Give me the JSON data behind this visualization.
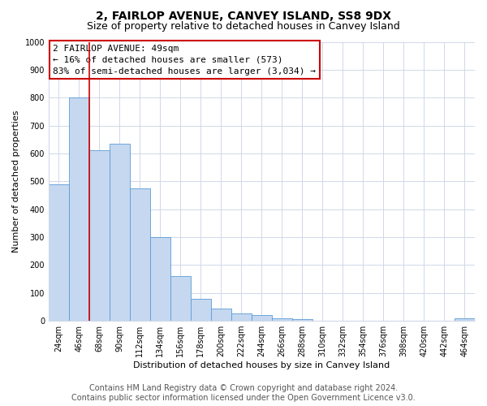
{
  "title": "2, FAIRLOP AVENUE, CANVEY ISLAND, SS8 9DX",
  "subtitle": "Size of property relative to detached houses in Canvey Island",
  "xlabel": "Distribution of detached houses by size in Canvey Island",
  "ylabel": "Number of detached properties",
  "footer_line1": "Contains HM Land Registry data © Crown copyright and database right 2024.",
  "footer_line2": "Contains public sector information licensed under the Open Government Licence v3.0.",
  "annotation_line1": "2 FAIRLOP AVENUE: 49sqm",
  "annotation_line2": "← 16% of detached houses are smaller (573)",
  "annotation_line3": "83% of semi-detached houses are larger (3,034) →",
  "categories": [
    "24sqm",
    "46sqm",
    "68sqm",
    "90sqm",
    "112sqm",
    "134sqm",
    "156sqm",
    "178sqm",
    "200sqm",
    "222sqm",
    "244sqm",
    "266sqm",
    "288sqm",
    "310sqm",
    "332sqm",
    "354sqm",
    "376sqm",
    "398sqm",
    "420sqm",
    "442sqm",
    "464sqm"
  ],
  "values": [
    490,
    800,
    610,
    635,
    475,
    300,
    160,
    78,
    45,
    25,
    20,
    10,
    5,
    0,
    0,
    0,
    0,
    0,
    0,
    0,
    8
  ],
  "bar_color": "#c5d8f0",
  "bar_edge_color": "#5b9bd5",
  "vline_color": "#cc0000",
  "annotation_box_color": "#cc0000",
  "ylim": [
    0,
    1000
  ],
  "yticks": [
    0,
    100,
    200,
    300,
    400,
    500,
    600,
    700,
    800,
    900,
    1000
  ],
  "grid_color": "#d0d8e8",
  "bg_color": "#ffffff",
  "title_fontsize": 10,
  "subtitle_fontsize": 9,
  "axis_label_fontsize": 8,
  "tick_fontsize": 7,
  "annotation_fontsize": 8,
  "footer_fontsize": 7
}
